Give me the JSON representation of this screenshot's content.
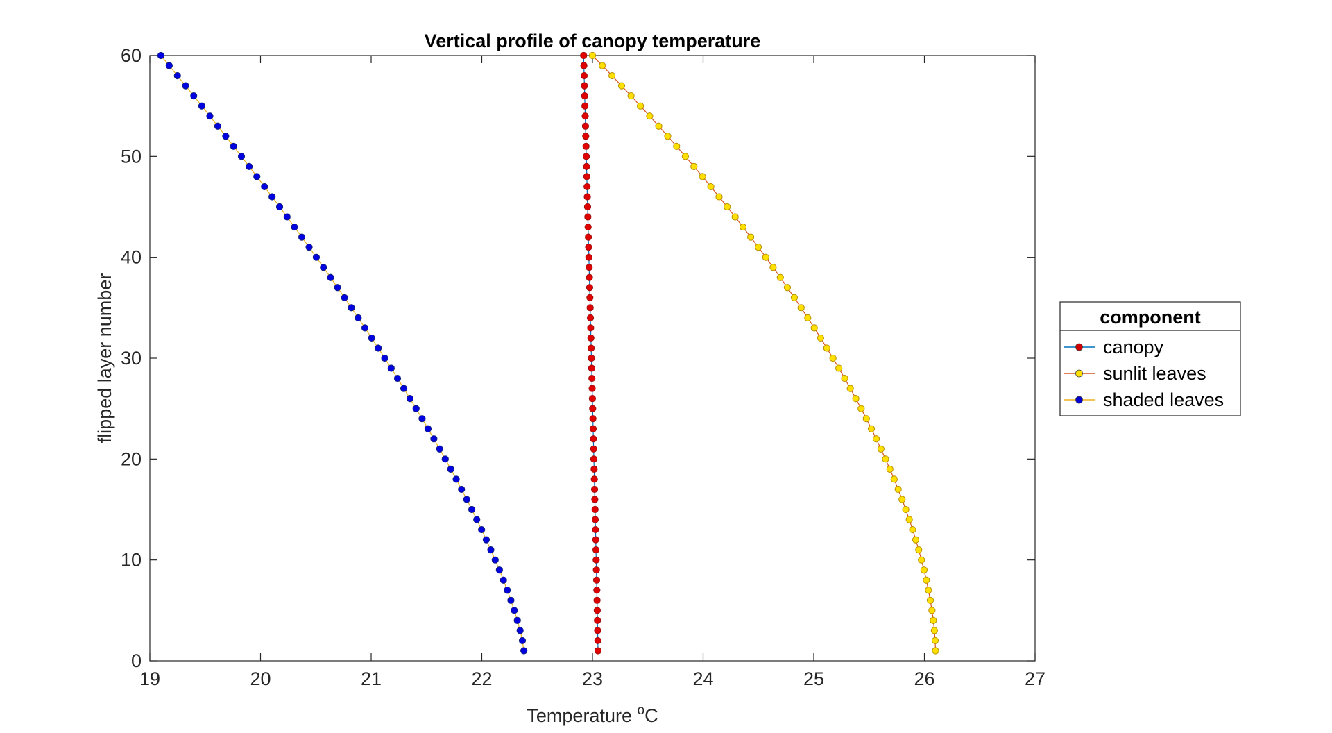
{
  "chart_data": {
    "type": "line",
    "title": "Vertical profile of canopy temperature",
    "xlabel": "Temperature",
    "xlabel_unit_prefix": "o",
    "xlabel_unit": "C",
    "ylabel": "flipped layer number",
    "xlim": [
      19,
      27
    ],
    "ylim": [
      0,
      60
    ],
    "xticks": [
      19,
      20,
      21,
      22,
      23,
      24,
      25,
      26,
      27
    ],
    "yticks": [
      0,
      10,
      20,
      30,
      40,
      50,
      60
    ],
    "grid": false,
    "box": true,
    "legend": {
      "title": "component",
      "placement": "outside-right",
      "entries": [
        {
          "label": "canopy",
          "line_color": "#0072BD",
          "marker_color": "#D00000"
        },
        {
          "label": "sunlit leaves",
          "line_color": "#D95319",
          "marker_color": "#FFE000"
        },
        {
          "label": "shaded leaves",
          "line_color": "#EDB120",
          "marker_color": "#0000D0"
        }
      ]
    },
    "layers": [
      1,
      60
    ],
    "series": [
      {
        "name": "canopy",
        "line_color": "#0072BD",
        "marker_face": "#E00000",
        "marker_edge": "#A01010",
        "x_bottom": 23.05,
        "x_top": 22.92,
        "curve_exponent": 1.1
      },
      {
        "name": "sunlit leaves",
        "line_color": "#D95319",
        "marker_face": "#FFE000",
        "marker_edge": "#B89000",
        "x_bottom": 26.1,
        "x_top": 23.0,
        "curve_exponent": 1.7
      },
      {
        "name": "shaded leaves",
        "line_color": "#EDB120",
        "marker_face": "#0000E0",
        "marker_edge": "#102080",
        "x_bottom": 22.38,
        "x_top": 19.1,
        "curve_exponent": 1.35
      }
    ]
  }
}
